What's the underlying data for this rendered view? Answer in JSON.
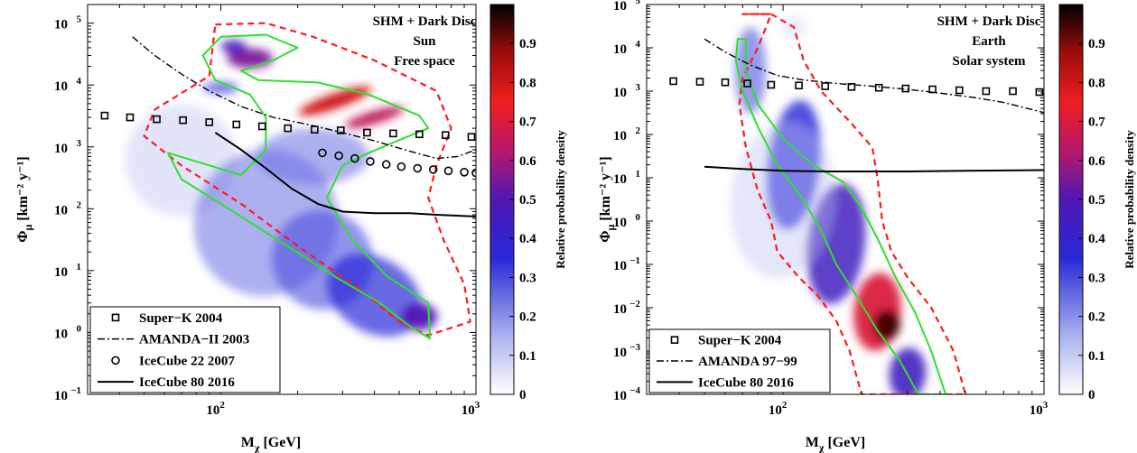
{
  "chart_data": [
    {
      "type": "heatmap",
      "annotation_lines": [
        "SHM + Dark Disc",
        "Sun",
        "Free space"
      ],
      "xlabel_main": "M",
      "xlabel_sub": "χ",
      "xlabel_unit": " [GeV]",
      "ylabel_main": "Φ",
      "ylabel_sub": "μ",
      "ylabel_unit": " [km⁻² y⁻¹]",
      "xscale": "log",
      "yscale": "log",
      "xlim": [
        30,
        1000
      ],
      "ylim": [
        0.1,
        200000
      ],
      "x_ticks": [
        {
          "v": 100,
          "b": "10",
          "e": "2"
        },
        {
          "v": 1000,
          "b": "10",
          "e": "3"
        }
      ],
      "y_ticks": [
        {
          "v": 0.1,
          "b": "10",
          "e": "−1"
        },
        {
          "v": 1,
          "b": "10",
          "e": "0"
        },
        {
          "v": 10,
          "b": "10",
          "e": "1"
        },
        {
          "v": 100,
          "b": "10",
          "e": "2"
        },
        {
          "v": 1000,
          "b": "10",
          "e": "3"
        },
        {
          "v": 10000,
          "b": "10",
          "e": "4"
        },
        {
          "v": 100000,
          "b": "10",
          "e": "5"
        }
      ],
      "colorbar": {
        "label": "Relative probability density",
        "ticks": [
          "0",
          "0.1",
          "0.2",
          "0.3",
          "0.4",
          "0.5",
          "0.6",
          "0.7",
          "0.8",
          "0.9"
        ],
        "range": [
          0,
          1
        ]
      },
      "legend": {
        "placement": "bottom-left",
        "entries": [
          {
            "label": "Super−K 2004",
            "style": "square"
          },
          {
            "label": "AMANDA−II 2003",
            "style": "dashdot"
          },
          {
            "label": "IceCube 22 2007",
            "style": "circle"
          },
          {
            "label": "IceCube 80 2016",
            "style": "solid"
          }
        ]
      },
      "density_blobs": [
        {
          "x": 70,
          "y": 600,
          "wx": 0.22,
          "wy": 0.9,
          "rot": 0.62,
          "a": 0.5,
          "c": 0.1
        },
        {
          "x": 150,
          "y": 60,
          "wx": 0.28,
          "wy": 1.2,
          "rot": 0.62,
          "a": 0.55,
          "c": 0.25
        },
        {
          "x": 250,
          "y": 15,
          "wx": 0.2,
          "wy": 0.8,
          "rot": 0.62,
          "a": 0.6,
          "c": 0.3
        },
        {
          "x": 400,
          "y": 4,
          "wx": 0.2,
          "wy": 0.6,
          "rot": 0.62,
          "a": 0.7,
          "c": 0.35
        },
        {
          "x": 230,
          "y": 700,
          "wx": 0.22,
          "wy": 0.45,
          "rot": 0,
          "a": 0.55,
          "c": 0.25
        },
        {
          "x": 130,
          "y": 27000,
          "wx": 0.09,
          "wy": 0.16,
          "rot": 0,
          "a": 0.95,
          "c": 0.55
        },
        {
          "x": 112,
          "y": 42000,
          "wx": 0.05,
          "wy": 0.1,
          "rot": 0,
          "a": 0.95,
          "c": 0.45
        },
        {
          "x": 280,
          "y": 5500,
          "wx": 0.15,
          "wy": 0.12,
          "rot": -0.35,
          "a": 1,
          "c": 0.8
        },
        {
          "x": 400,
          "y": 3000,
          "wx": 0.12,
          "wy": 0.1,
          "rot": -0.3,
          "a": 1,
          "c": 0.65
        },
        {
          "x": 100,
          "y": 9000,
          "wx": 0.07,
          "wy": 0.09,
          "rot": 0,
          "a": 0.8,
          "c": 0.3
        },
        {
          "x": 600,
          "y": 1.8,
          "wx": 0.07,
          "wy": 0.22,
          "rot": 0,
          "a": 0.95,
          "c": 0.5
        }
      ],
      "contour_95": [
        [
          95,
          95000
        ],
        [
          150,
          100000
        ],
        [
          230,
          60000
        ],
        [
          400,
          25000
        ],
        [
          700,
          8000
        ],
        [
          800,
          2000
        ],
        [
          700,
          500
        ],
        [
          650,
          150
        ],
        [
          750,
          30
        ],
        [
          900,
          6
        ],
        [
          950,
          1.5
        ],
        [
          650,
          0.9
        ],
        [
          500,
          1.5
        ],
        [
          350,
          5
        ],
        [
          200,
          25
        ],
        [
          120,
          120
        ],
        [
          70,
          500
        ],
        [
          50,
          1500
        ],
        [
          55,
          4000
        ],
        [
          90,
          14000
        ],
        [
          95,
          95000
        ]
      ],
      "contour_68": [
        [
          100,
          60000
        ],
        [
          150,
          65000
        ],
        [
          200,
          40000
        ],
        [
          160,
          25000
        ],
        [
          120,
          17000
        ],
        [
          140,
          12000
        ],
        [
          240,
          11000
        ],
        [
          380,
          7000
        ],
        [
          600,
          3200
        ],
        [
          650,
          2000
        ],
        [
          480,
          1200
        ],
        [
          380,
          800
        ],
        [
          300,
          500
        ],
        [
          260,
          150
        ],
        [
          330,
          30
        ],
        [
          450,
          8
        ],
        [
          650,
          3
        ],
        [
          660,
          0.8
        ],
        [
          560,
          1.2
        ],
        [
          420,
          3
        ],
        [
          280,
          8
        ],
        [
          170,
          30
        ],
        [
          100,
          120
        ],
        [
          70,
          300
        ],
        [
          62,
          800
        ],
        [
          120,
          350
        ],
        [
          150,
          900
        ],
        [
          150,
          3000
        ],
        [
          130,
          7000
        ],
        [
          95,
          12000
        ],
        [
          85,
          30000
        ],
        [
          100,
          60000
        ]
      ],
      "series": [
        {
          "name": "Super−K 2004",
          "style": "square",
          "x": [
            35,
            44,
            56,
            71,
            90,
            115,
            145,
            183,
            233,
            295,
            374,
            474,
            600,
            760,
            960
          ],
          "y": [
            3200,
            3000,
            2800,
            2700,
            2500,
            2300,
            2150,
            2000,
            1900,
            1850,
            1700,
            1650,
            1600,
            1550,
            1450
          ]
        },
        {
          "name": "AMANDA−II 2003",
          "style": "dashdot",
          "x": [
            45,
            55,
            70,
            90,
            120,
            160,
            220,
            300,
            400,
            550,
            700,
            850,
            1000
          ],
          "y": [
            60000,
            30000,
            15000,
            8000,
            4500,
            3000,
            2300,
            1700,
            1250,
            850,
            650,
            700,
            900
          ]
        },
        {
          "name": "IceCube 22 2007",
          "style": "circle",
          "x": [
            250,
            290,
            335,
            385,
            445,
            510,
            590,
            680,
            780,
            900,
            1000
          ],
          "y": [
            800,
            720,
            650,
            580,
            520,
            480,
            450,
            430,
            410,
            390,
            380
          ]
        },
        {
          "name": "IceCube 80 2016",
          "style": "solid",
          "x": [
            95,
            120,
            150,
            190,
            240,
            300,
            400,
            550,
            700,
            1000
          ],
          "y": [
            1700,
            900,
            450,
            210,
            120,
            90,
            85,
            85,
            80,
            75
          ]
        }
      ]
    },
    {
      "type": "heatmap",
      "annotation_lines": [
        "SHM + Dark Disc",
        "Earth",
        "Solar system"
      ],
      "xlabel_main": "M",
      "xlabel_sub": "χ",
      "xlabel_unit": " [GeV]",
      "ylabel_main": "Φ",
      "ylabel_sub": "μ",
      "ylabel_unit": " [km⁻² y⁻¹]",
      "xscale": "log",
      "yscale": "log",
      "xlim": [
        30,
        1000
      ],
      "ylim": [
        0.0001,
        100000
      ],
      "x_ticks": [
        {
          "v": 100,
          "b": "10",
          "e": "2"
        },
        {
          "v": 1000,
          "b": "10",
          "e": "3"
        }
      ],
      "y_ticks": [
        {
          "v": 0.0001,
          "b": "10",
          "e": "−4"
        },
        {
          "v": 0.001,
          "b": "10",
          "e": "−3"
        },
        {
          "v": 0.01,
          "b": "10",
          "e": "−2"
        },
        {
          "v": 0.1,
          "b": "10",
          "e": "−1"
        },
        {
          "v": 1,
          "b": "10",
          "e": "0"
        },
        {
          "v": 10,
          "b": "10",
          "e": "1"
        },
        {
          "v": 100,
          "b": "10",
          "e": "2"
        },
        {
          "v": 1000,
          "b": "10",
          "e": "3"
        },
        {
          "v": 10000,
          "b": "10",
          "e": "4"
        },
        {
          "v": 100000,
          "b": "10",
          "e": "5"
        }
      ],
      "colorbar": {
        "label": "Relative probability density",
        "ticks": [
          "0",
          "0.1",
          "0.2",
          "0.3",
          "0.4",
          "0.5",
          "0.6",
          "0.7",
          "0.8",
          "0.9"
        ],
        "range": [
          0,
          1
        ]
      },
      "legend": {
        "placement": "bottom-left",
        "entries": [
          {
            "label": "Super−K 2004",
            "style": "square"
          },
          {
            "label": "AMANDA 97−99",
            "style": "dashdot"
          },
          {
            "label": "IceCube 80 2016",
            "style": "solid"
          }
        ]
      },
      "density_blobs": [
        {
          "x": 75,
          "y": 3000,
          "wx": 0.06,
          "wy": 1.0,
          "rot": 0,
          "a": 0.7,
          "c": 0.25
        },
        {
          "x": 110,
          "y": 20,
          "wx": 0.1,
          "wy": 1.5,
          "rot": 0.12,
          "a": 0.8,
          "c": 0.35
        },
        {
          "x": 160,
          "y": 0.3,
          "wx": 0.11,
          "wy": 1.4,
          "rot": 0.12,
          "a": 0.85,
          "c": 0.45
        },
        {
          "x": 230,
          "y": 0.008,
          "wx": 0.09,
          "wy": 0.9,
          "rot": 0.1,
          "a": 0.95,
          "c": 0.7
        },
        {
          "x": 250,
          "y": 0.004,
          "wx": 0.05,
          "wy": 0.35,
          "rot": 0.1,
          "a": 1,
          "c": 0.95
        },
        {
          "x": 300,
          "y": 0.0003,
          "wx": 0.07,
          "wy": 0.6,
          "rot": 0.1,
          "a": 0.9,
          "c": 0.45
        },
        {
          "x": 110,
          "y": 30000,
          "wx": 0.05,
          "wy": 0.25,
          "rot": 0,
          "a": 0.35,
          "c": 0.1
        },
        {
          "x": 100,
          "y": 3,
          "wx": 0.2,
          "wy": 1.8,
          "rot": 0.1,
          "a": 0.4,
          "c": 0.12
        }
      ],
      "contour_95": [
        [
          70,
          60000
        ],
        [
          90,
          60000
        ],
        [
          80,
          10000
        ],
        [
          70,
          2000
        ],
        [
          68,
          500
        ],
        [
          72,
          50
        ],
        [
          80,
          5
        ],
        [
          90,
          1
        ],
        [
          95,
          0.2
        ],
        [
          115,
          0.05
        ],
        [
          135,
          0.02
        ],
        [
          160,
          0.005
        ],
        [
          180,
          0.001
        ],
        [
          200,
          0.0001
        ],
        [
          500,
          0.0001
        ],
        [
          450,
          0.001
        ],
        [
          370,
          0.01
        ],
        [
          300,
          0.05
        ],
        [
          260,
          0.2
        ],
        [
          240,
          1
        ],
        [
          230,
          10
        ],
        [
          220,
          50
        ],
        [
          180,
          200
        ],
        [
          140,
          1000
        ],
        [
          120,
          5000
        ],
        [
          110,
          30000
        ],
        [
          90,
          60000
        ],
        [
          70,
          60000
        ]
      ],
      "contour_68": [
        [
          67,
          16000
        ],
        [
          72,
          16000
        ],
        [
          72,
          3000
        ],
        [
          80,
          500
        ],
        [
          100,
          80
        ],
        [
          130,
          20
        ],
        [
          170,
          8
        ],
        [
          200,
          2
        ],
        [
          230,
          0.4
        ],
        [
          270,
          0.05
        ],
        [
          320,
          0.008
        ],
        [
          370,
          0.001
        ],
        [
          420,
          0.0001
        ],
        [
          330,
          0.0001
        ],
        [
          280,
          0.0006
        ],
        [
          230,
          0.003
        ],
        [
          190,
          0.02
        ],
        [
          160,
          0.1
        ],
        [
          140,
          0.6
        ],
        [
          120,
          3
        ],
        [
          95,
          20
        ],
        [
          80,
          150
        ],
        [
          70,
          1000
        ],
        [
          66,
          5000
        ],
        [
          67,
          16000
        ]
      ],
      "series": [
        {
          "name": "Super−K 2004",
          "style": "square",
          "x": [
            38,
            48,
            60,
            73,
            90,
            115,
            145,
            183,
            233,
            295,
            374,
            474,
            600,
            760,
            960
          ],
          "y": [
            1700,
            1650,
            1600,
            1500,
            1400,
            1350,
            1300,
            1250,
            1200,
            1150,
            1100,
            1050,
            1000,
            1000,
            950
          ]
        },
        {
          "name": "AMANDA 97−99",
          "style": "dashdot",
          "x": [
            50,
            60,
            75,
            95,
            120,
            160,
            220,
            300,
            400,
            550,
            700,
            1000
          ],
          "y": [
            16000,
            8000,
            4000,
            2300,
            1800,
            1500,
            1300,
            1100,
            900,
            700,
            550,
            320
          ]
        },
        {
          "name": "IceCube 80 2016",
          "style": "solid",
          "x": [
            50,
            70,
            100,
            150,
            200,
            300,
            500,
            1000
          ],
          "y": [
            18,
            16,
            14.5,
            14,
            14,
            14,
            14.5,
            15
          ]
        }
      ]
    }
  ]
}
